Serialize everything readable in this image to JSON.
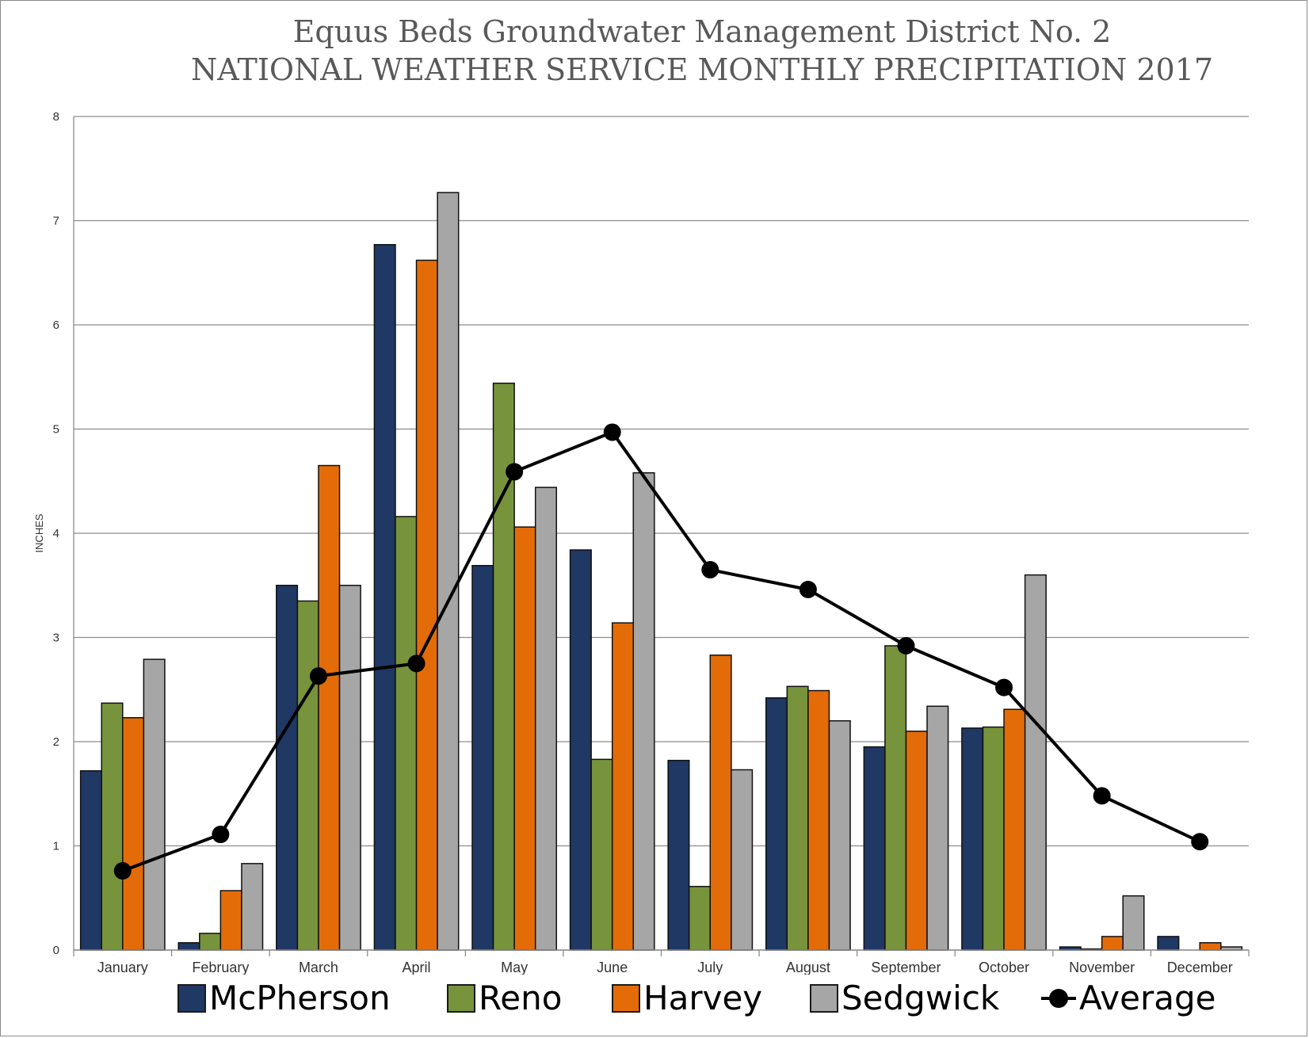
{
  "title_line1": "Equus Beds Groundwater Management District No. 2",
  "title_line2": "NATIONAL WEATHER SERVICE MONTHLY PRECIPITATION 2017",
  "colors": {
    "McPherson": "#1f3864",
    "Reno": "#77933c",
    "Harvey": "#e36c09",
    "Sedgwick": "#a6a6a6",
    "Average": "#000000"
  },
  "chart_data": {
    "type": "bar",
    "title": "Equus Beds Groundwater Management District No. 2 NATIONAL WEATHER SERVICE MONTHLY PRECIPITATION 2017",
    "xlabel": "",
    "ylabel": "INCHES",
    "ylim": [
      0,
      8
    ],
    "yticks": [
      0,
      1,
      2,
      3,
      4,
      5,
      6,
      7,
      8
    ],
    "grid": true,
    "legend_position": "bottom",
    "categories": [
      "January",
      "February",
      "March",
      "April",
      "May",
      "June",
      "July",
      "August",
      "September",
      "October",
      "November",
      "December"
    ],
    "series": [
      {
        "name": "McPherson",
        "type": "bar",
        "values": [
          1.72,
          0.07,
          3.5,
          6.77,
          3.69,
          3.84,
          1.82,
          2.42,
          1.95,
          2.13,
          0.03,
          0.13
        ]
      },
      {
        "name": "Reno",
        "type": "bar",
        "values": [
          2.37,
          0.16,
          3.35,
          4.16,
          5.44,
          1.83,
          0.61,
          2.53,
          2.92,
          2.14,
          0.01,
          0.0
        ]
      },
      {
        "name": "Harvey",
        "type": "bar",
        "values": [
          2.23,
          0.57,
          4.65,
          6.62,
          4.06,
          3.14,
          2.83,
          2.49,
          2.1,
          2.31,
          0.13,
          0.07
        ]
      },
      {
        "name": "Sedgwick",
        "type": "bar",
        "values": [
          2.79,
          0.83,
          3.5,
          7.27,
          4.44,
          4.58,
          1.73,
          2.2,
          2.34,
          3.6,
          0.52,
          0.03
        ]
      },
      {
        "name": "Average",
        "type": "line",
        "values": [
          0.76,
          1.11,
          2.63,
          2.75,
          4.59,
          4.97,
          3.65,
          3.46,
          2.92,
          2.52,
          1.48,
          1.04
        ]
      }
    ]
  }
}
